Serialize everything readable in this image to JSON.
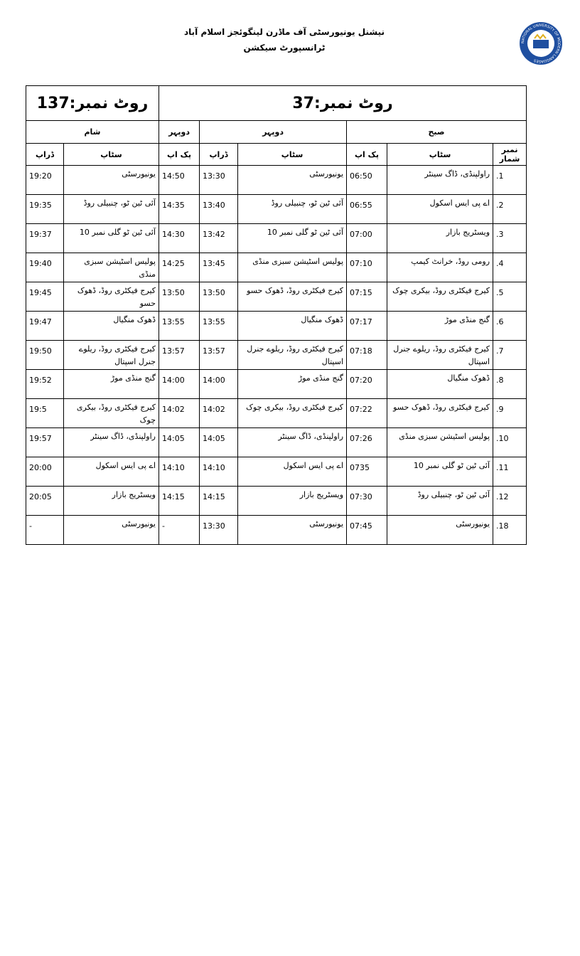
{
  "header": {
    "title": "نیشنل یونیورسٹی آف ماڈرن لینگوئجز اسلام آباد",
    "subtitle": "ٹرانسپورٹ سیکشن",
    "logo_text": "NATIONAL UNIVERSITY OF MODERN LANGUAGES"
  },
  "table": {
    "route_a": "روٹ نمبر:37",
    "route_b": "روٹ نمبر:137",
    "sections": [
      "صبح",
      "دوپہر",
      "دوپہر",
      "شام"
    ],
    "columns": [
      "نمبر شمار",
      "سٹاپ",
      "پک اپ",
      "سٹاپ",
      "ڈراپ",
      "پک اپ",
      "سٹاپ",
      "ڈراپ"
    ],
    "rows": [
      [
        ".1",
        "راولپنڈی، ڈاگ سینٹر",
        "06:50",
        "یونیورسٹی",
        "13:30",
        "14:50",
        "یونیورسٹی",
        "19:20"
      ],
      [
        ".2",
        "اے پی ایس اسکول",
        "06:55",
        "آئی ٹین ٹو، چنبیلی روڈ",
        "13:40",
        "14:35",
        "آئی ٹین ٹو، چنبیلی روڈ",
        "19:35"
      ],
      [
        ".3",
        "ویسٹریج بازار",
        "07:00",
        "آئی ٹین ٹو گلی نمبر 10",
        "13:42",
        "14:30",
        "آئی ٹین ٹو گلی نمبر 10",
        "19:37"
      ],
      [
        ".4",
        "رومی روڈ، خرانٹ کیمپ",
        "07:10",
        "پولیس اسٹیشن سبزی منڈی",
        "13:45",
        "14:25",
        "پولیس اسٹیشن سبزی منڈی",
        "19:40"
      ],
      [
        ".5",
        "کیرج فیکٹری روڈ، بیکری چوک",
        "07:15",
        "کیرج فیکٹری روڈ، ڈھوک حسو",
        "13:50",
        "13:50",
        "کیرج فیکٹری روڈ، ڈھوک حسو",
        "19:45"
      ],
      [
        ".6",
        "گنج منڈی موڑ",
        "07:17",
        "ڈھوک منگیال",
        "13:55",
        "13:55",
        "ڈھوک منگیال",
        "19:47"
      ],
      [
        ".7",
        "کیرج فیکٹری روڈ، ریلوے جنرل اسپتال",
        "07:18",
        "کیرج فیکٹری روڈ، ریلوے جنرل اسپتال",
        "13:57",
        "13:57",
        "کیرج فیکٹری روڈ، ریلوے جنرل اسپتال",
        "19:50"
      ],
      [
        ".8",
        "ڈھوک منگیال",
        "07:20",
        "گنج منڈی موڑ",
        "14:00",
        "14:00",
        "گنج منڈی موڑ",
        "19:52"
      ],
      [
        ".9",
        "کیرج فیکٹری روڈ، ڈھوک حسو",
        "07:22",
        "کیرج فیکٹری روڈ، بیکری چوک",
        "14:02",
        "14:02",
        "کیرج فیکٹری روڈ، بیکری چوک",
        "19:5"
      ],
      [
        ".10",
        "پولیس اسٹیشن سبزی منڈی",
        "07:26",
        "راولپنڈی، ڈاگ سینٹر",
        "14:05",
        "14:05",
        "راولپنڈی، ڈاگ سینٹر",
        "19:57"
      ],
      [
        ".11",
        "آئی ٹین ٹو گلی نمبر 10",
        "0735",
        "اے پی ایس اسکول",
        "14:10",
        "14:10",
        "اے پی ایس اسکول",
        "20:00"
      ],
      [
        ".12",
        "آئی ٹین ٹو، چنبیلی روڈ",
        "07:30",
        "ویسٹریج بازار",
        "14:15",
        "14:15",
        "ویسٹریج بازار",
        "20:05"
      ],
      [
        ".18",
        "یونیورسٹی",
        "07:45",
        "یونیورسٹی",
        "13:30",
        "-",
        "یونیورسٹی",
        "-"
      ]
    ]
  }
}
